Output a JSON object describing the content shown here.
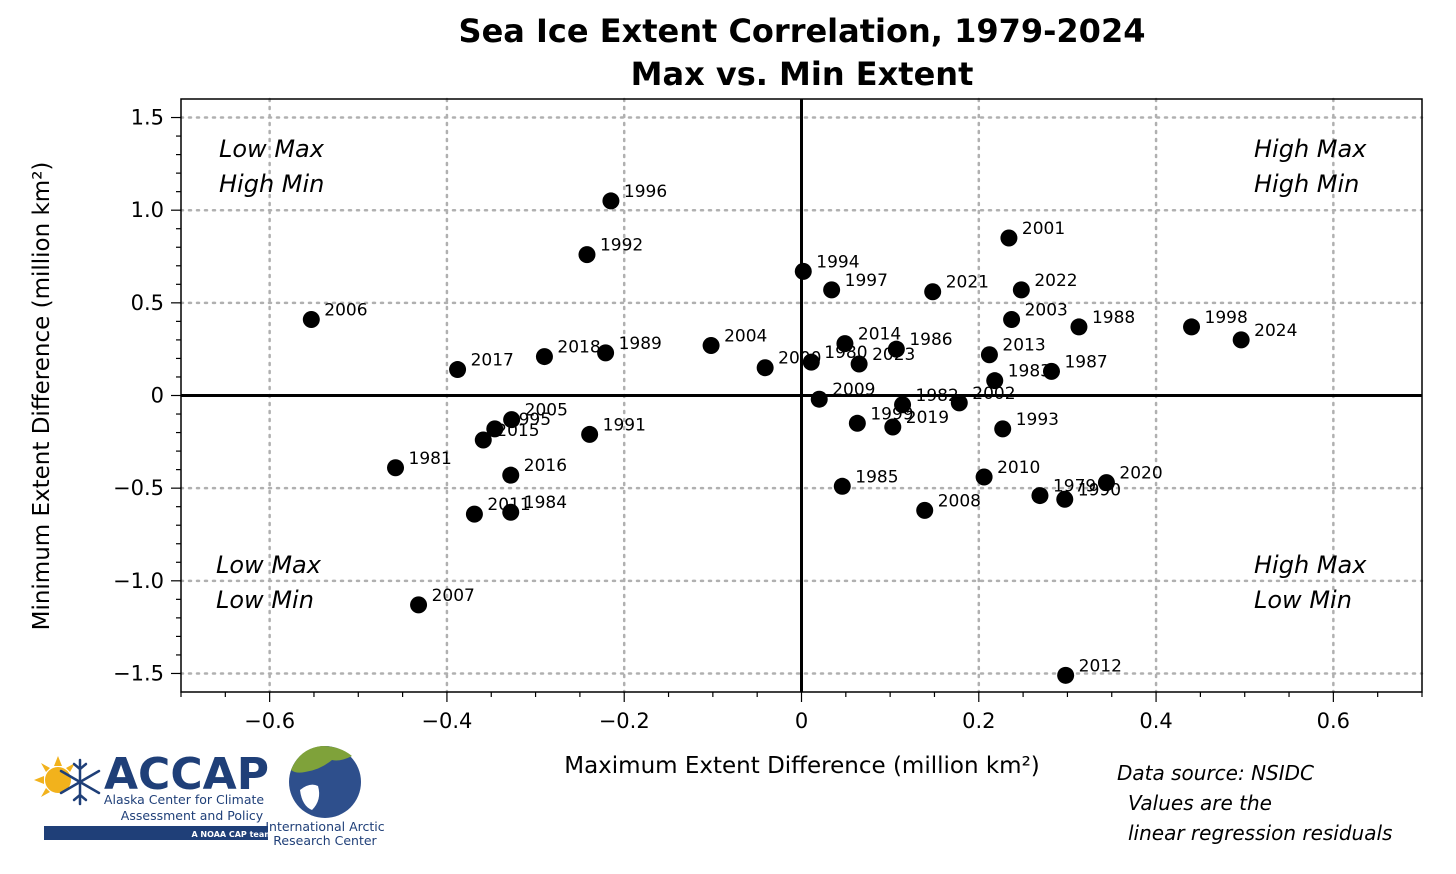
{
  "chart_data": {
    "type": "scatter",
    "title": "Sea Ice Extent Correlation, 1979-2024",
    "subtitle": "Max vs. Min Extent",
    "xlabel": "Maximum Extent Difference (million km²)",
    "ylabel": "Minimum Extent Difference (million km²)",
    "xlim": [
      -0.7,
      0.7
    ],
    "ylim": [
      -1.6,
      1.6
    ],
    "xticks": [
      -0.6,
      -0.4,
      -0.2,
      0,
      0.2,
      0.4,
      0.6
    ],
    "xtick_labels": [
      "−0.6",
      "−0.4",
      "−0.2",
      "0",
      "0.2",
      "0.4",
      "0.6"
    ],
    "yticks": [
      1.5,
      1.0,
      0.5,
      0,
      -0.5,
      -1.0,
      -1.5
    ],
    "ytick_labels": [
      "1.5",
      "1.0",
      "0.5",
      "0",
      "−0.5",
      "−1.0",
      "−1.5"
    ],
    "grid": true,
    "points": [
      {
        "label": "1996",
        "x": -0.215,
        "y": 1.05
      },
      {
        "label": "1992",
        "x": -0.242,
        "y": 0.76
      },
      {
        "label": "2006",
        "x": -0.553,
        "y": 0.41
      },
      {
        "label": "2017",
        "x": -0.388,
        "y": 0.14
      },
      {
        "label": "2018",
        "x": -0.29,
        "y": 0.21
      },
      {
        "label": "1989",
        "x": -0.221,
        "y": 0.23
      },
      {
        "label": "2004",
        "x": -0.102,
        "y": 0.27
      },
      {
        "label": "2000",
        "x": -0.041,
        "y": 0.15
      },
      {
        "label": "1980",
        "x": 0.011,
        "y": 0.18
      },
      {
        "label": "1994",
        "x": 0.002,
        "y": 0.67
      },
      {
        "label": "1997",
        "x": 0.034,
        "y": 0.57
      },
      {
        "label": "2014",
        "x": 0.049,
        "y": 0.28
      },
      {
        "label": "2023",
        "x": 0.065,
        "y": 0.17
      },
      {
        "label": "1986",
        "x": 0.107,
        "y": 0.25
      },
      {
        "label": "2021",
        "x": 0.148,
        "y": 0.56
      },
      {
        "label": "2001",
        "x": 0.234,
        "y": 0.85
      },
      {
        "label": "2022",
        "x": 0.248,
        "y": 0.57
      },
      {
        "label": "2003",
        "x": 0.237,
        "y": 0.41
      },
      {
        "label": "1988",
        "x": 0.313,
        "y": 0.37
      },
      {
        "label": "2013",
        "x": 0.212,
        "y": 0.22
      },
      {
        "label": "1983",
        "x": 0.218,
        "y": 0.08
      },
      {
        "label": "1987",
        "x": 0.282,
        "y": 0.13
      },
      {
        "label": "1998",
        "x": 0.44,
        "y": 0.37
      },
      {
        "label": "2024",
        "x": 0.496,
        "y": 0.3
      },
      {
        "label": "2009",
        "x": 0.02,
        "y": -0.02
      },
      {
        "label": "1982",
        "x": 0.114,
        "y": -0.05
      },
      {
        "label": "2002",
        "x": 0.178,
        "y": -0.04
      },
      {
        "label": "1999",
        "x": 0.063,
        "y": -0.15
      },
      {
        "label": "2019",
        "x": 0.103,
        "y": -0.17
      },
      {
        "label": "1993",
        "x": 0.227,
        "y": -0.18
      },
      {
        "label": "2005",
        "x": -0.327,
        "y": -0.13
      },
      {
        "label": "1995",
        "x": -0.346,
        "y": -0.18
      },
      {
        "label": "2015",
        "x": -0.359,
        "y": -0.24
      },
      {
        "label": "1991",
        "x": -0.239,
        "y": -0.21
      },
      {
        "label": "1981",
        "x": -0.458,
        "y": -0.39
      },
      {
        "label": "2016",
        "x": -0.328,
        "y": -0.43
      },
      {
        "label": "2011",
        "x": -0.369,
        "y": -0.64
      },
      {
        "label": "1984",
        "x": -0.328,
        "y": -0.63
      },
      {
        "label": "1985",
        "x": 0.046,
        "y": -0.49
      },
      {
        "label": "2010",
        "x": 0.206,
        "y": -0.44
      },
      {
        "label": "1979",
        "x": 0.269,
        "y": -0.54
      },
      {
        "label": "1990",
        "x": 0.297,
        "y": -0.56
      },
      {
        "label": "2020",
        "x": 0.344,
        "y": -0.47
      },
      {
        "label": "2008",
        "x": 0.139,
        "y": -0.62
      },
      {
        "label": "2007",
        "x": -0.432,
        "y": -1.13
      },
      {
        "label": "2012",
        "x": 0.298,
        "y": -1.51
      }
    ],
    "quadrant_labels": {
      "top_left": [
        "Low Max",
        "High Min"
      ],
      "top_right": [
        "High Max",
        "High Min"
      ],
      "bottom_left": [
        "Low Max",
        "Low Min"
      ],
      "bottom_right": [
        "High Max",
        "Low Min"
      ]
    }
  },
  "notes": [
    "Data source: NSIDC",
    "Values are the",
    "linear regression residuals"
  ],
  "logos": {
    "accap_name": "ACCAP",
    "accap_line1": "Alaska Center for Climate",
    "accap_line2": "Assessment and Policy",
    "accap_tag": "A NOAA CAP team",
    "iarc_line1": "International Arctic",
    "iarc_line2": "Research Center"
  }
}
